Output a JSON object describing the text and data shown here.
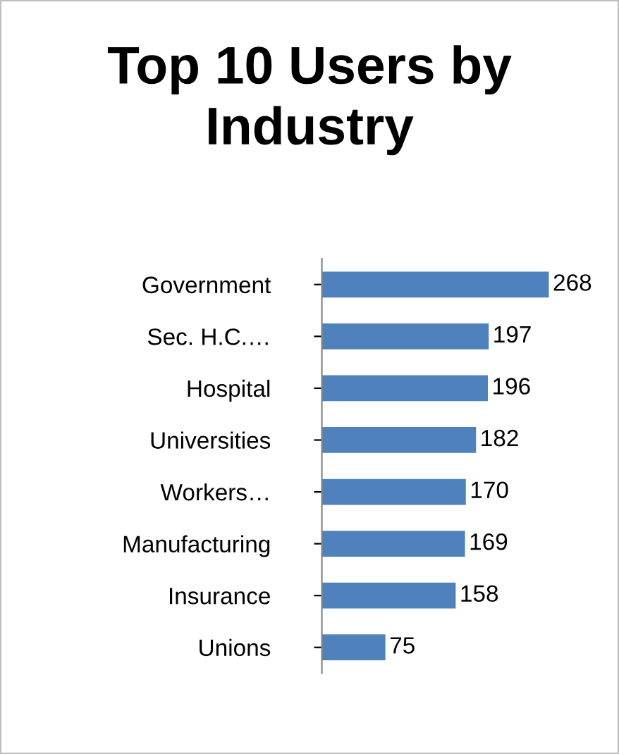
{
  "chart_data": {
    "type": "bar",
    "title": "Top 10 Users by Industry",
    "orientation": "horizontal",
    "categories": [
      "Government",
      "Sec. H.C.…",
      "Hospital",
      "Universities",
      "Workers…",
      "Manufacturing",
      "Insurance",
      "Unions"
    ],
    "values": [
      268,
      197,
      196,
      182,
      170,
      169,
      158,
      75
    ],
    "color": "#4f81bd",
    "data_labels": true,
    "tick_labels": "y",
    "grid": false,
    "legend": false
  }
}
